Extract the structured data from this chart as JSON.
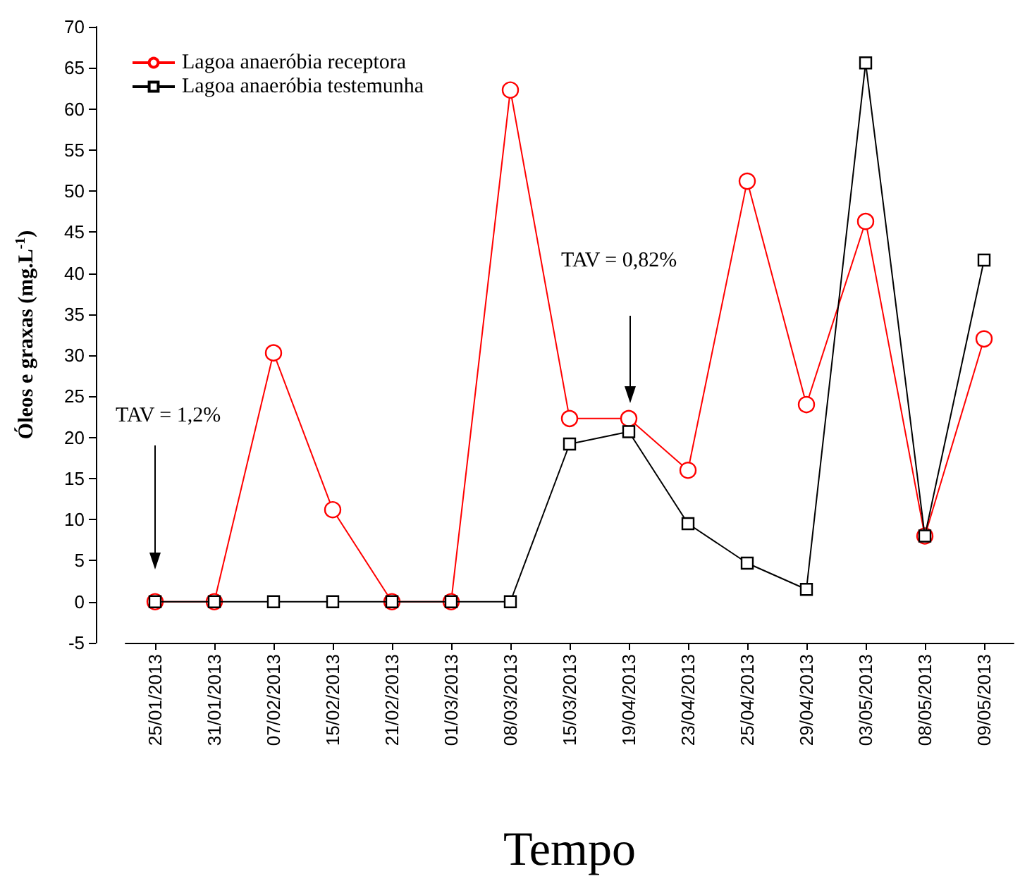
{
  "chart_data": {
    "type": "line",
    "xlabel": "Tempo",
    "ylabel": "Óleos e graxas (mg.L$^{-1}$)",
    "categories": [
      "25/01/2013",
      "31/01/2013",
      "07/02/2013",
      "15/02/2013",
      "21/02/2013",
      "01/03/2013",
      "08/03/2013",
      "15/03/2013",
      "19/04/2013",
      "23/04/2013",
      "25/04/2013",
      "29/04/2013",
      "03/05/2013",
      "08/05/2013",
      "09/05/2013"
    ],
    "series": [
      {
        "name": "Lagoa anaeróbia receptora",
        "color": "#ff0000",
        "marker": "circle",
        "values": [
          0,
          0,
          30.3,
          11.2,
          0,
          0,
          62.3,
          22.3,
          22.3,
          16,
          51.2,
          24,
          46.3,
          8,
          32
        ]
      },
      {
        "name": "Lagoa anaeróbia testemunha",
        "color": "#000000",
        "marker": "square",
        "values": [
          0,
          0,
          0,
          0,
          0,
          0,
          0,
          19.2,
          20.7,
          9.5,
          4.7,
          1.5,
          65.6,
          8,
          41.6
        ]
      }
    ],
    "ylim": [
      -5,
      70
    ],
    "yticks": [
      -5,
      0,
      5,
      10,
      15,
      20,
      25,
      30,
      35,
      40,
      45,
      50,
      55,
      60,
      65,
      70
    ],
    "annotations": [
      "TAV = 1,2%",
      "TAV = 0,82%"
    ],
    "grid": false,
    "legend": "top left",
    "line_style": "solid"
  }
}
